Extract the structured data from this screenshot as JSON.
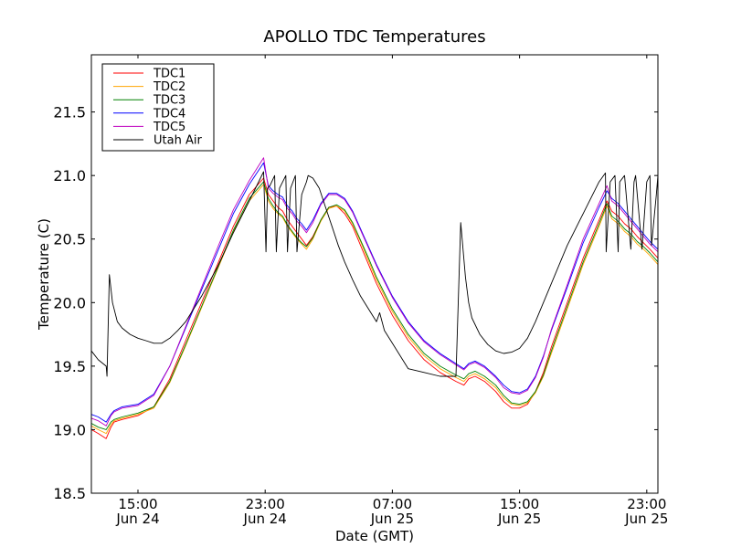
{
  "chart_data": {
    "type": "line",
    "title": "APOLLO TDC Temperatures",
    "xlabel": "Date (GMT)",
    "ylabel": "Temperature (C)",
    "x_units": "hours since 00:00 Jun 24 (GMT)",
    "xlim": [
      12.07,
      47.7
    ],
    "ylim": [
      18.5,
      21.95
    ],
    "grid": false,
    "legend_position": "top-left",
    "yticks": [
      18.5,
      19.0,
      19.5,
      20.0,
      20.5,
      21.0,
      21.5
    ],
    "ytick_labels": [
      "18.5",
      "19.0",
      "19.5",
      "20.0",
      "20.5",
      "21.0",
      "21.5"
    ],
    "xticks": [
      15,
      23,
      31,
      39,
      47
    ],
    "xtick_labels": [
      {
        "time": "15:00",
        "date": "Jun 24"
      },
      {
        "time": "23:00",
        "date": "Jun 24"
      },
      {
        "time": "07:00",
        "date": "Jun 25"
      },
      {
        "time": "15:00",
        "date": "Jun 25"
      },
      {
        "time": "23:00",
        "date": "Jun 25"
      }
    ],
    "series": [
      {
        "name": "TDC1",
        "color": "#ff0000",
        "x": [
          12.07,
          12.5,
          13.0,
          13.3,
          13.5,
          14.0,
          15.0,
          16.0,
          17.0,
          18.0,
          19.0,
          20.0,
          21.0,
          22.0,
          22.9,
          23.2,
          23.5,
          23.8,
          24.1,
          24.4,
          24.7,
          25.0,
          25.3,
          25.6,
          26.0,
          26.5,
          27.0,
          27.5,
          28.0,
          28.5,
          29.0,
          29.5,
          30.0,
          31.0,
          32.0,
          33.0,
          34.0,
          35.0,
          35.5,
          35.8,
          36.2,
          36.8,
          37.5,
          38.0,
          38.5,
          39.0,
          39.5,
          40.0,
          40.5,
          41.0,
          42.0,
          43.0,
          44.0,
          44.5,
          44.8,
          45.2,
          45.6,
          46.0,
          46.4,
          46.8,
          47.2,
          47.7
        ],
        "y": [
          19.0,
          18.97,
          18.93,
          19.02,
          19.06,
          19.08,
          19.11,
          19.18,
          19.4,
          19.7,
          20.0,
          20.3,
          20.6,
          20.85,
          20.98,
          20.85,
          20.8,
          20.75,
          20.72,
          20.65,
          20.6,
          20.55,
          20.5,
          20.45,
          20.52,
          20.65,
          20.75,
          20.76,
          20.7,
          20.6,
          20.45,
          20.3,
          20.15,
          19.9,
          19.7,
          19.55,
          19.45,
          19.38,
          19.35,
          19.4,
          19.42,
          19.38,
          19.3,
          19.22,
          19.17,
          19.17,
          19.2,
          19.3,
          19.45,
          19.65,
          20.0,
          20.35,
          20.65,
          20.8,
          20.72,
          20.68,
          20.62,
          20.58,
          20.52,
          20.47,
          20.42,
          20.35
        ]
      },
      {
        "name": "TDC2",
        "color": "#ffa500",
        "x": [
          12.07,
          12.5,
          13.0,
          13.3,
          13.5,
          14.0,
          15.0,
          16.0,
          17.0,
          18.0,
          19.0,
          20.0,
          21.0,
          22.0,
          22.9,
          23.2,
          23.5,
          23.8,
          24.1,
          24.4,
          24.7,
          25.0,
          25.3,
          25.6,
          26.0,
          26.5,
          27.0,
          27.5,
          28.0,
          28.5,
          29.0,
          29.5,
          30.0,
          31.0,
          32.0,
          33.0,
          34.0,
          35.0,
          35.5,
          35.8,
          36.2,
          36.8,
          37.5,
          38.0,
          38.5,
          39.0,
          39.5,
          40.0,
          40.5,
          41.0,
          42.0,
          43.0,
          44.0,
          44.5,
          44.8,
          45.2,
          45.6,
          46.0,
          46.4,
          46.8,
          47.2,
          47.7
        ],
        "y": [
          19.03,
          19.0,
          18.97,
          19.04,
          19.07,
          19.09,
          19.12,
          19.17,
          19.37,
          19.66,
          19.96,
          20.26,
          20.56,
          20.8,
          20.93,
          20.8,
          20.74,
          20.7,
          20.67,
          20.6,
          20.55,
          20.5,
          20.46,
          20.42,
          20.5,
          20.64,
          20.74,
          20.76,
          20.72,
          20.62,
          20.48,
          20.33,
          20.18,
          19.93,
          19.73,
          19.58,
          19.48,
          19.41,
          19.38,
          19.42,
          19.44,
          19.4,
          19.33,
          19.25,
          19.2,
          19.19,
          19.21,
          19.29,
          19.42,
          19.6,
          19.95,
          20.3,
          20.6,
          20.76,
          20.66,
          20.62,
          20.56,
          20.52,
          20.46,
          20.42,
          20.37,
          20.3
        ]
      },
      {
        "name": "TDC3",
        "color": "#008000",
        "x": [
          12.07,
          12.5,
          13.0,
          13.3,
          13.5,
          14.0,
          15.0,
          16.0,
          17.0,
          18.0,
          19.0,
          20.0,
          21.0,
          22.0,
          22.9,
          23.2,
          23.5,
          23.8,
          24.1,
          24.4,
          24.7,
          25.0,
          25.3,
          25.6,
          26.0,
          26.5,
          27.0,
          27.5,
          28.0,
          28.5,
          29.0,
          29.5,
          30.0,
          31.0,
          32.0,
          33.0,
          34.0,
          35.0,
          35.5,
          35.8,
          36.2,
          36.8,
          37.5,
          38.0,
          38.5,
          39.0,
          39.5,
          40.0,
          40.5,
          41.0,
          42.0,
          43.0,
          44.0,
          44.5,
          44.8,
          45.2,
          45.6,
          46.0,
          46.4,
          46.8,
          47.2,
          47.7
        ],
        "y": [
          19.05,
          19.02,
          19.0,
          19.06,
          19.08,
          19.1,
          19.13,
          19.18,
          19.38,
          19.67,
          19.97,
          20.27,
          20.57,
          20.82,
          20.95,
          20.82,
          20.76,
          20.71,
          20.68,
          20.61,
          20.56,
          20.51,
          20.47,
          20.44,
          20.51,
          20.65,
          20.75,
          20.77,
          20.73,
          20.63,
          20.49,
          20.35,
          20.2,
          19.95,
          19.75,
          19.6,
          19.5,
          19.43,
          19.4,
          19.44,
          19.46,
          19.42,
          19.35,
          19.27,
          19.21,
          19.2,
          19.22,
          19.3,
          19.43,
          19.62,
          19.97,
          20.32,
          20.62,
          20.78,
          20.68,
          20.64,
          20.58,
          20.54,
          20.48,
          20.44,
          20.39,
          20.32
        ]
      },
      {
        "name": "TDC4",
        "color": "#0000ff",
        "x": [
          12.07,
          12.5,
          13.0,
          13.3,
          13.5,
          14.0,
          15.0,
          16.0,
          17.0,
          18.0,
          19.0,
          20.0,
          21.0,
          22.0,
          22.9,
          23.2,
          23.5,
          23.8,
          24.1,
          24.4,
          24.7,
          25.0,
          25.3,
          25.6,
          26.0,
          26.5,
          27.0,
          27.5,
          28.0,
          28.5,
          29.0,
          29.5,
          30.0,
          31.0,
          32.0,
          33.0,
          34.0,
          35.0,
          35.5,
          35.8,
          36.2,
          36.8,
          37.5,
          38.0,
          38.5,
          39.0,
          39.5,
          40.0,
          40.5,
          41.0,
          42.0,
          43.0,
          44.0,
          44.5,
          44.8,
          45.2,
          45.6,
          46.0,
          46.4,
          46.8,
          47.2,
          47.7
        ],
        "y": [
          19.12,
          19.1,
          19.06,
          19.12,
          19.15,
          19.18,
          19.2,
          19.28,
          19.5,
          19.8,
          20.1,
          20.4,
          20.7,
          20.93,
          21.1,
          20.92,
          20.88,
          20.85,
          20.83,
          20.76,
          20.72,
          20.66,
          20.62,
          20.57,
          20.65,
          20.78,
          20.86,
          20.86,
          20.82,
          20.72,
          20.58,
          20.44,
          20.3,
          20.05,
          19.85,
          19.7,
          19.6,
          19.52,
          19.48,
          19.52,
          19.54,
          19.5,
          19.42,
          19.35,
          19.3,
          19.29,
          19.32,
          19.42,
          19.58,
          19.78,
          20.12,
          20.47,
          20.75,
          20.88,
          20.82,
          20.78,
          20.72,
          20.66,
          20.6,
          20.54,
          20.48,
          20.42
        ]
      },
      {
        "name": "TDC5",
        "color": "#bf00bf",
        "x": [
          12.07,
          12.5,
          13.0,
          13.3,
          13.5,
          14.0,
          15.0,
          16.0,
          17.0,
          18.0,
          19.0,
          20.0,
          21.0,
          22.0,
          22.9,
          23.2,
          23.5,
          23.8,
          24.1,
          24.4,
          24.7,
          25.0,
          25.3,
          25.6,
          26.0,
          26.5,
          27.0,
          27.5,
          28.0,
          28.5,
          29.0,
          29.5,
          30.0,
          31.0,
          32.0,
          33.0,
          34.0,
          35.0,
          35.5,
          35.8,
          36.2,
          36.8,
          37.5,
          38.0,
          38.5,
          39.0,
          39.5,
          40.0,
          40.5,
          41.0,
          42.0,
          43.0,
          44.0,
          44.5,
          44.8,
          45.2,
          45.6,
          46.0,
          46.4,
          46.8,
          47.2,
          47.7
        ],
        "y": [
          19.09,
          19.07,
          19.03,
          19.11,
          19.14,
          19.17,
          19.19,
          19.27,
          19.5,
          19.81,
          20.12,
          20.43,
          20.73,
          20.96,
          21.14,
          20.9,
          20.86,
          20.83,
          20.81,
          20.74,
          20.7,
          20.64,
          20.6,
          20.55,
          20.63,
          20.77,
          20.85,
          20.85,
          20.81,
          20.71,
          20.57,
          20.43,
          20.29,
          20.04,
          19.84,
          19.69,
          19.59,
          19.51,
          19.47,
          19.51,
          19.53,
          19.49,
          19.41,
          19.33,
          19.29,
          19.28,
          19.31,
          19.41,
          19.57,
          19.79,
          20.14,
          20.5,
          20.78,
          20.92,
          20.8,
          20.76,
          20.7,
          20.64,
          20.58,
          20.52,
          20.46,
          20.4
        ]
      },
      {
        "name": "Utah Air",
        "color": "#000000",
        "x": [
          12.07,
          12.5,
          13.0,
          13.05,
          13.2,
          13.4,
          13.7,
          14.0,
          14.5,
          15.0,
          15.5,
          16.0,
          16.5,
          17.0,
          17.5,
          18.0,
          19.0,
          20.0,
          21.0,
          22.0,
          22.9,
          23.05,
          23.15,
          23.3,
          23.6,
          23.7,
          23.9,
          24.3,
          24.4,
          24.6,
          24.9,
          25.0,
          25.3,
          25.6,
          25.7,
          26.0,
          26.4,
          26.8,
          27.2,
          27.6,
          28.0,
          28.5,
          29.0,
          29.5,
          30.0,
          30.2,
          30.5,
          31.0,
          31.5,
          32.0,
          33.0,
          34.0,
          35.0,
          35.3,
          35.6,
          35.8,
          36.0,
          36.5,
          37.0,
          37.5,
          38.0,
          38.5,
          39.0,
          39.5,
          40.0,
          41.0,
          42.0,
          43.0,
          44.0,
          44.4,
          44.45,
          44.7,
          45.0,
          45.2,
          45.3,
          45.6,
          46.0,
          46.2,
          46.3,
          46.7,
          47.0,
          47.2,
          47.3,
          47.6,
          47.7
        ],
        "y": [
          19.62,
          19.55,
          19.5,
          19.42,
          20.22,
          20.0,
          19.85,
          19.8,
          19.75,
          19.72,
          19.7,
          19.68,
          19.68,
          19.72,
          19.78,
          19.85,
          20.05,
          20.28,
          20.55,
          20.8,
          21.03,
          20.4,
          20.9,
          20.92,
          21.0,
          20.4,
          20.9,
          21.0,
          20.4,
          20.9,
          21.0,
          20.4,
          20.85,
          20.95,
          21.0,
          20.98,
          20.9,
          20.75,
          20.6,
          20.45,
          20.32,
          20.18,
          20.05,
          19.95,
          19.85,
          19.92,
          19.78,
          19.68,
          19.58,
          19.48,
          19.45,
          19.42,
          19.42,
          20.63,
          20.2,
          20.0,
          19.88,
          19.75,
          19.67,
          19.62,
          19.6,
          19.61,
          19.64,
          19.72,
          19.85,
          20.15,
          20.45,
          20.7,
          20.95,
          21.02,
          20.4,
          20.95,
          21.0,
          20.4,
          20.95,
          21.0,
          20.42,
          20.95,
          21.0,
          20.42,
          20.95,
          21.0,
          20.45,
          20.85,
          21.0
        ]
      }
    ]
  }
}
